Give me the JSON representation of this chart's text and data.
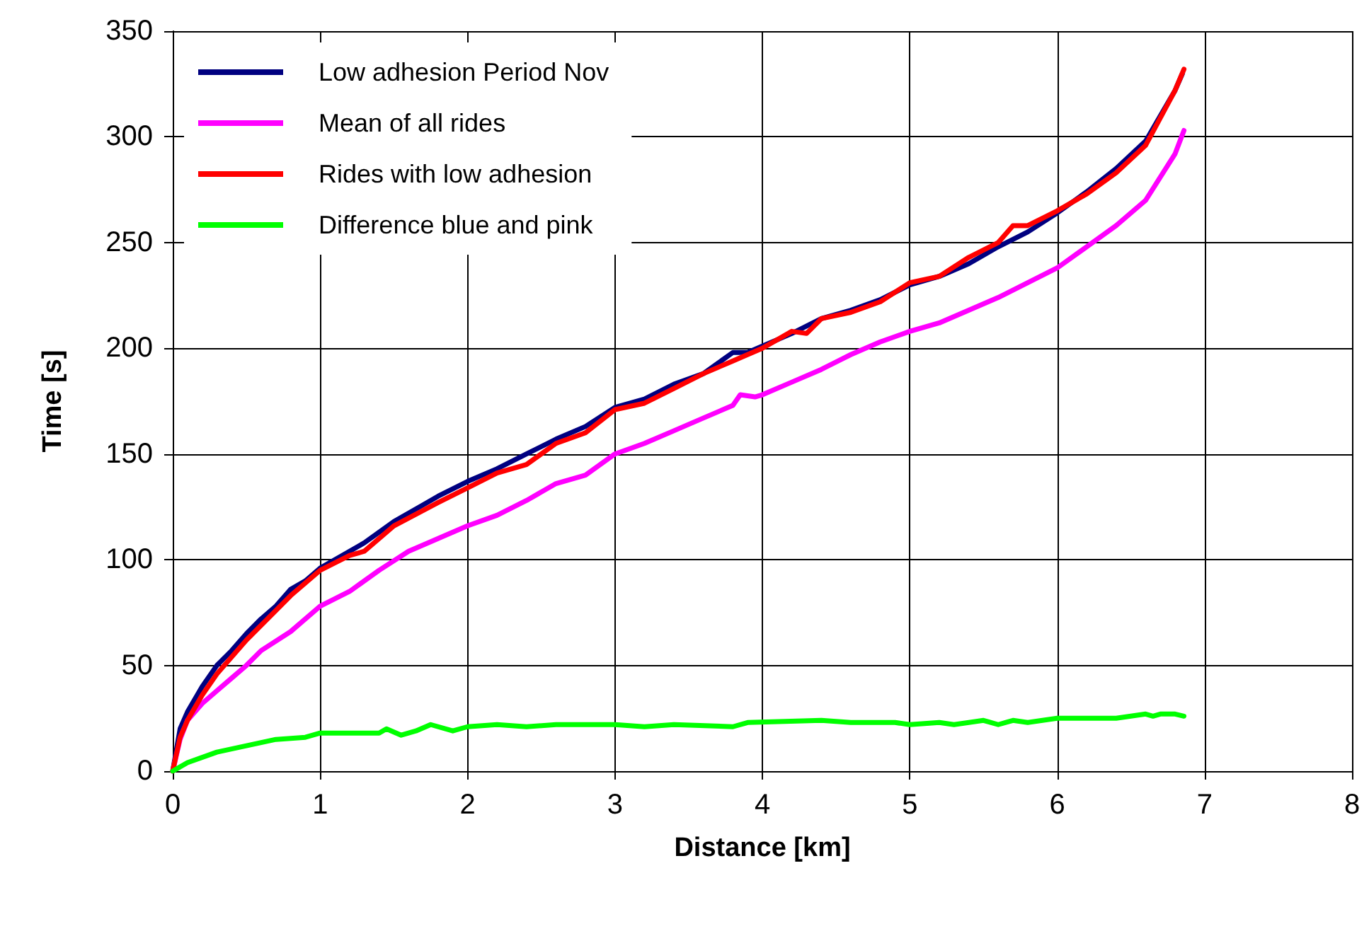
{
  "chart_data": {
    "type": "line",
    "xlabel": "Distance [km]",
    "ylabel": "Time [s]",
    "xlim": [
      0,
      8
    ],
    "xticks": [
      0,
      1,
      2,
      3,
      4,
      5,
      6,
      7,
      8
    ],
    "ylim": [
      0,
      350
    ],
    "yticks": [
      0,
      50,
      100,
      150,
      200,
      250,
      300,
      350
    ],
    "grid": true,
    "legend": "top left",
    "marker": "none",
    "line_style": "solid",
    "series": [
      {
        "name": "Low adhesion Period Nov",
        "color": "#000080",
        "x": [
          0,
          0.05,
          0.1,
          0.2,
          0.3,
          0.4,
          0.5,
          0.6,
          0.7,
          0.8,
          0.9,
          1.0,
          1.2,
          1.3,
          1.5,
          1.7,
          1.8,
          2.0,
          2.2,
          2.4,
          2.6,
          2.8,
          3.0,
          3.2,
          3.4,
          3.6,
          3.8,
          3.9,
          4.0,
          4.2,
          4.4,
          4.6,
          4.8,
          5.0,
          5.2,
          5.4,
          5.6,
          5.8,
          6.0,
          6.2,
          6.4,
          6.6,
          6.8,
          6.85
        ],
        "values": [
          0,
          20,
          28,
          40,
          50,
          57,
          65,
          72,
          78,
          86,
          90,
          96,
          104,
          108,
          118,
          126,
          130,
          137,
          143,
          150,
          157,
          163,
          172,
          176,
          183,
          188,
          198,
          198,
          201,
          207,
          214,
          218,
          223,
          230,
          234,
          240,
          248,
          255,
          264,
          274,
          285,
          298,
          322,
          330
        ]
      },
      {
        "name": "Mean of all rides",
        "color": "#ff00ff",
        "x": [
          0,
          0.05,
          0.1,
          0.2,
          0.3,
          0.4,
          0.5,
          0.6,
          0.8,
          1.0,
          1.2,
          1.4,
          1.6,
          1.8,
          2.0,
          2.2,
          2.4,
          2.6,
          2.8,
          3.0,
          3.2,
          3.4,
          3.6,
          3.8,
          3.85,
          3.95,
          4.0,
          4.2,
          4.4,
          4.6,
          4.8,
          5.0,
          5.2,
          5.4,
          5.6,
          5.8,
          6.0,
          6.2,
          6.4,
          6.6,
          6.8,
          6.86
        ],
        "values": [
          0,
          15,
          24,
          32,
          38,
          44,
          50,
          57,
          66,
          78,
          85,
          95,
          104,
          110,
          116,
          121,
          128,
          136,
          140,
          150,
          155,
          161,
          167,
          173,
          178,
          177,
          178,
          184,
          190,
          197,
          203,
          208,
          212,
          218,
          224,
          231,
          238,
          248,
          258,
          270,
          292,
          303
        ]
      },
      {
        "name": "Rides with low adhesion",
        "color": "#ff0000",
        "x": [
          0,
          0.05,
          0.1,
          0.2,
          0.3,
          0.5,
          0.8,
          1.0,
          1.2,
          1.3,
          1.5,
          1.8,
          2.0,
          2.2,
          2.4,
          2.6,
          2.8,
          3.0,
          3.2,
          3.4,
          3.6,
          3.8,
          4.0,
          4.2,
          4.3,
          4.4,
          4.6,
          4.8,
          5.0,
          5.2,
          5.4,
          5.6,
          5.7,
          5.8,
          6.0,
          6.2,
          6.4,
          6.6,
          6.8,
          6.86
        ],
        "values": [
          0,
          16,
          24,
          36,
          46,
          62,
          83,
          95,
          102,
          104,
          116,
          127,
          134,
          141,
          145,
          155,
          160,
          171,
          174,
          181,
          188,
          194,
          200,
          208,
          207,
          214,
          217,
          222,
          231,
          234,
          243,
          250,
          258,
          258,
          265,
          273,
          283,
          296,
          322,
          332
        ]
      },
      {
        "name": "Difference blue and pink",
        "color": "#00ff00",
        "x": [
          0,
          0.1,
          0.3,
          0.5,
          0.7,
          0.9,
          1.0,
          1.4,
          1.45,
          1.55,
          1.65,
          1.75,
          1.9,
          2.0,
          2.2,
          2.4,
          2.6,
          3.0,
          3.2,
          3.4,
          3.8,
          3.9,
          4.4,
          4.6,
          4.9,
          5.0,
          5.2,
          5.3,
          5.5,
          5.6,
          5.7,
          5.8,
          6.0,
          6.4,
          6.5,
          6.6,
          6.65,
          6.7,
          6.8,
          6.86
        ],
        "values": [
          0,
          4,
          9,
          12,
          15,
          16,
          18,
          18,
          20,
          17,
          19,
          22,
          19,
          21,
          22,
          21,
          22,
          22,
          21,
          22,
          21,
          23,
          24,
          23,
          23,
          22,
          23,
          22,
          24,
          22,
          24,
          23,
          25,
          25,
          26,
          27,
          26,
          27,
          27,
          26
        ]
      }
    ]
  }
}
